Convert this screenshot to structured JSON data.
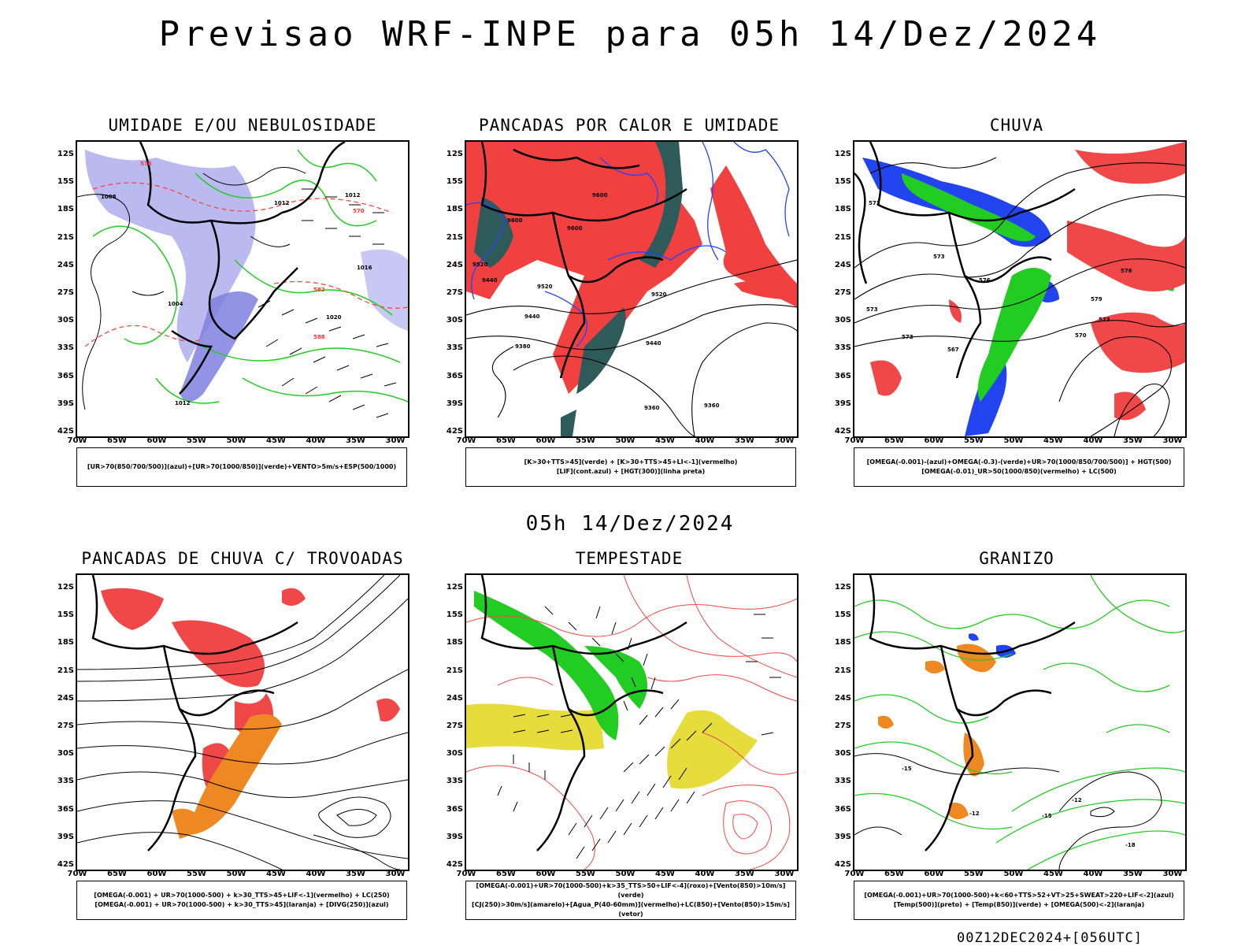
{
  "title": "Previsao WRF-INPE  para 05h 14/Dez/2024",
  "mid_time": "05h 14/Dez/2024",
  "footer": "00Z12DEC2024+[056UTC]",
  "lat_ticks": [
    "12S",
    "15S",
    "18S",
    "21S",
    "24S",
    "27S",
    "30S",
    "33S",
    "36S",
    "39S",
    "42S"
  ],
  "lon_ticks": [
    "70W",
    "65W",
    "60W",
    "55W",
    "50W",
    "45W",
    "40W",
    "35W",
    "30W"
  ],
  "panels": [
    {
      "title": "UMIDADE E/OU NEBULOSIDADE",
      "legend": [
        "[UR>70(850/700/500)](azul)+[UR>70(1000/850)](verde)+VENTO>5m/s+ESP(500/1000)"
      ]
    },
    {
      "title": "PANCADAS POR CALOR E UMIDADE",
      "legend": [
        "[K>30+TTS>45](verde) + [K>30+TTS>45+LI<-1](vermelho)",
        "[LIF](cont.azul) + [HGT(300)](linha preta)"
      ]
    },
    {
      "title": "CHUVA",
      "legend": [
        "[OMEGA(-0.001)-(azul)+OMEGA(-0.3)-(verde)+UR>70(1000/850/700/500)] + HGT(500)",
        "[OMEGA(-0.01)_UR>50(1000/850)(vermelho) + LC(500)"
      ]
    },
    {
      "title": "PANCADAS DE CHUVA C/ TROVOADAS",
      "legend": [
        "[OMEGA(-0.001) + UR>70(1000-500) + k>30_TTS>45+LIF<-1](vermelho) + LC(250)",
        "[OMEGA(-0.001) + UR>70(1000-500) + k>30_TTS>45](laranja) + [DIVG(250)](azul)"
      ]
    },
    {
      "title": "TEMPESTADE",
      "legend": [
        "[OMEGA(-0.001)+UR>70(1000-500)+k>35_TTS>50+LIF<-4](roxo)+[Vento(850)>10m/s](verde)",
        "[CJ(250)>30m/s](amarelo)+[Agua_P(40-60mm)](vermelho)+LC(850)+[Vento(850)>15m/s](vetor)"
      ]
    },
    {
      "title": "GRANIZO",
      "legend": [
        "[OMEGA(-0.001)+UR>70(1000-500)+k<60+TTS>52+VT>25+SWEAT>220+LIF<-2](azul)",
        "[Temp(500)](preto) + [Temp(850)](verde) + [OMEGA(500)<-2](laranja)"
      ]
    }
  ],
  "contour_labels": {
    "p1": [
      "1008",
      "1012",
      "1016",
      "1020",
      "1004",
      "576",
      "570",
      "582",
      "588"
    ],
    "p2": [
      "9600",
      "9520",
      "9440",
      "9380",
      "9360"
    ],
    "p3": [
      "573",
      "576",
      "579",
      "570",
      "567"
    ],
    "p6": [
      "-12",
      "-15",
      "-18"
    ]
  }
}
